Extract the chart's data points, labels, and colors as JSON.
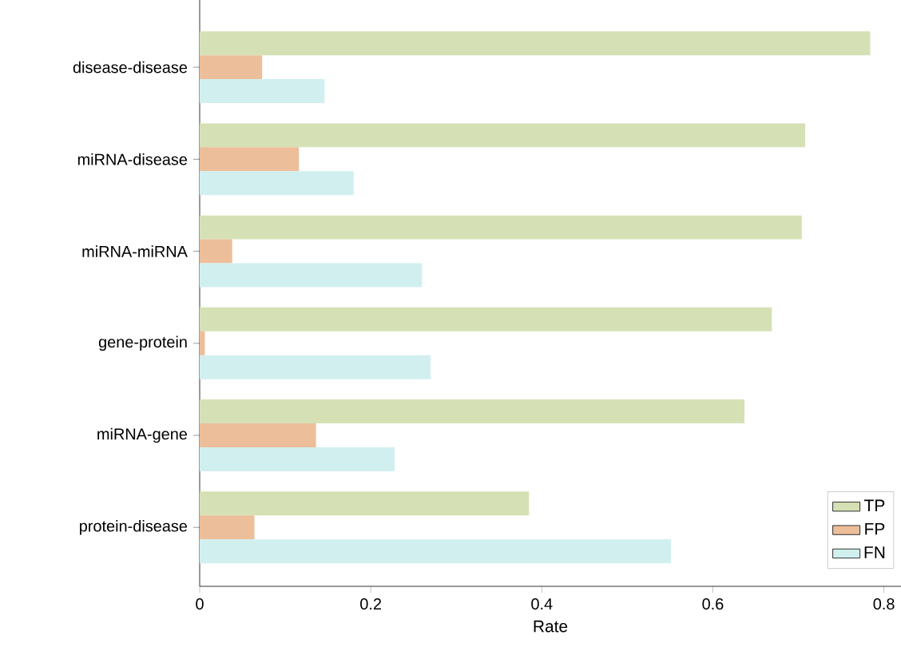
{
  "chart_data": {
    "type": "bar",
    "orientation": "horizontal",
    "xlabel": "Rate",
    "categories": [
      "disease-disease",
      "miRNA-disease",
      "miRNA-miRNA",
      "gene-protein",
      "miRNA-gene",
      "protein-disease"
    ],
    "series": [
      {
        "name": "TP",
        "color": "#d5e1b5",
        "values": [
          0.784,
          0.708,
          0.704,
          0.669,
          0.637,
          0.385
        ]
      },
      {
        "name": "FP",
        "color": "#ecbe9a",
        "values": [
          0.073,
          0.116,
          0.038,
          0.006,
          0.136,
          0.064
        ]
      },
      {
        "name": "FN",
        "color": "#d1efef",
        "values": [
          0.146,
          0.18,
          0.26,
          0.27,
          0.228,
          0.551
        ]
      }
    ],
    "xlim": [
      0,
      0.82
    ],
    "xticks": [
      0,
      0.2,
      0.4,
      0.6,
      0.8
    ],
    "legend": "bottom right",
    "grid": false
  }
}
